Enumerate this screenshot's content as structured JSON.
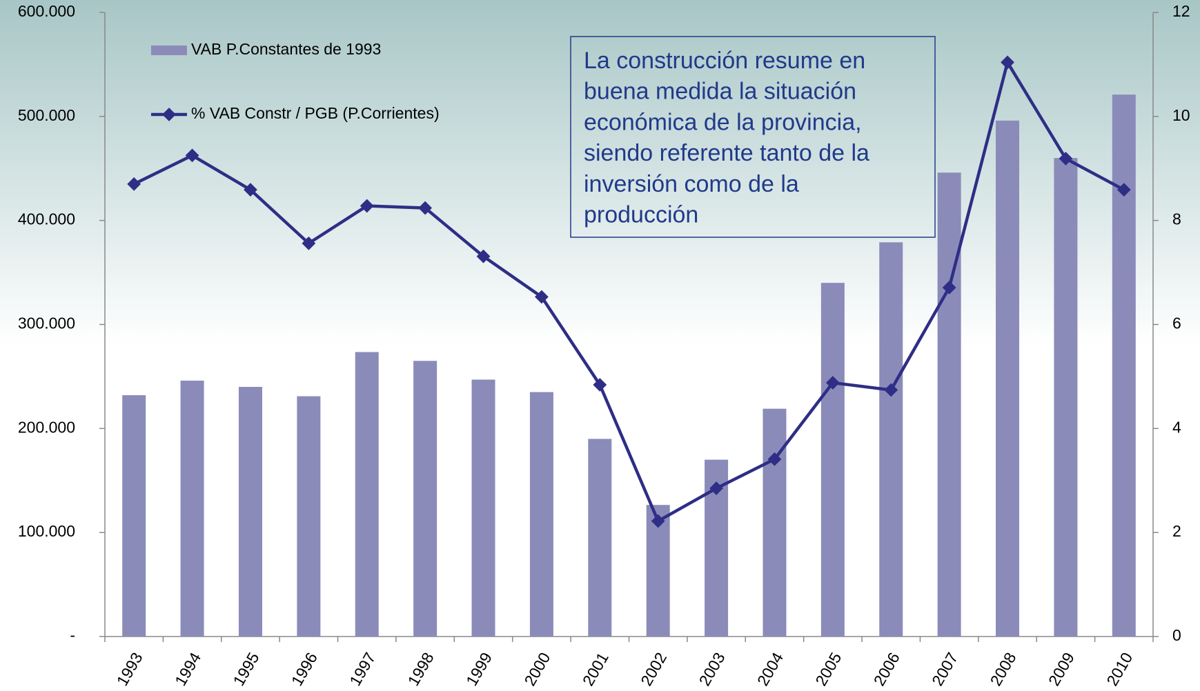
{
  "chart_data": {
    "type": "bar_line",
    "categories": [
      "1993",
      "1994",
      "1995",
      "1996",
      "1997",
      "1998",
      "1999",
      "2000",
      "2001",
      "2002",
      "2003",
      "2004",
      "2005",
      "2006",
      "2007",
      "2008",
      "2009",
      "2010"
    ],
    "series": [
      {
        "name": "VAB P.Constantes de 1993",
        "type": "bar",
        "color": "#8b8bba",
        "values": [
          232000,
          246000,
          240000,
          231000,
          273500,
          265000,
          247000,
          235000,
          190000,
          126500,
          170000,
          219000,
          340000,
          379000,
          446000,
          496000,
          460000,
          521000
        ]
      },
      {
        "name": "% VAB Constr / PGB (P.Corrientes)",
        "type": "line",
        "axis": "y2",
        "color": "#2e2e86",
        "values": [
          8.7,
          9.25,
          8.59,
          7.56,
          8.28,
          8.24,
          7.31,
          6.53,
          4.84,
          2.22,
          2.85,
          3.41,
          4.88,
          4.74,
          6.71,
          11.04,
          9.19,
          8.59
        ]
      }
    ],
    "ylim": [
      0,
      600000
    ],
    "yticks": [
      {
        "value": 0,
        "label": "-"
      },
      {
        "value": 100000,
        "label": "100.000"
      },
      {
        "value": 200000,
        "label": "200.000"
      },
      {
        "value": 300000,
        "label": "300.000"
      },
      {
        "value": 400000,
        "label": "400.000"
      },
      {
        "value": 500000,
        "label": "500.000"
      },
      {
        "value": 600000,
        "label": "600.000"
      }
    ],
    "y2lim": [
      0,
      12
    ],
    "y2ticks": [
      0,
      2,
      4,
      6,
      8,
      10,
      12
    ],
    "annotation": [
      "La construcción resume en",
      "buena medida la situación",
      "económica de la provincia,",
      "siendo referente tanto de la",
      "inversión como de la",
      "producción"
    ]
  }
}
